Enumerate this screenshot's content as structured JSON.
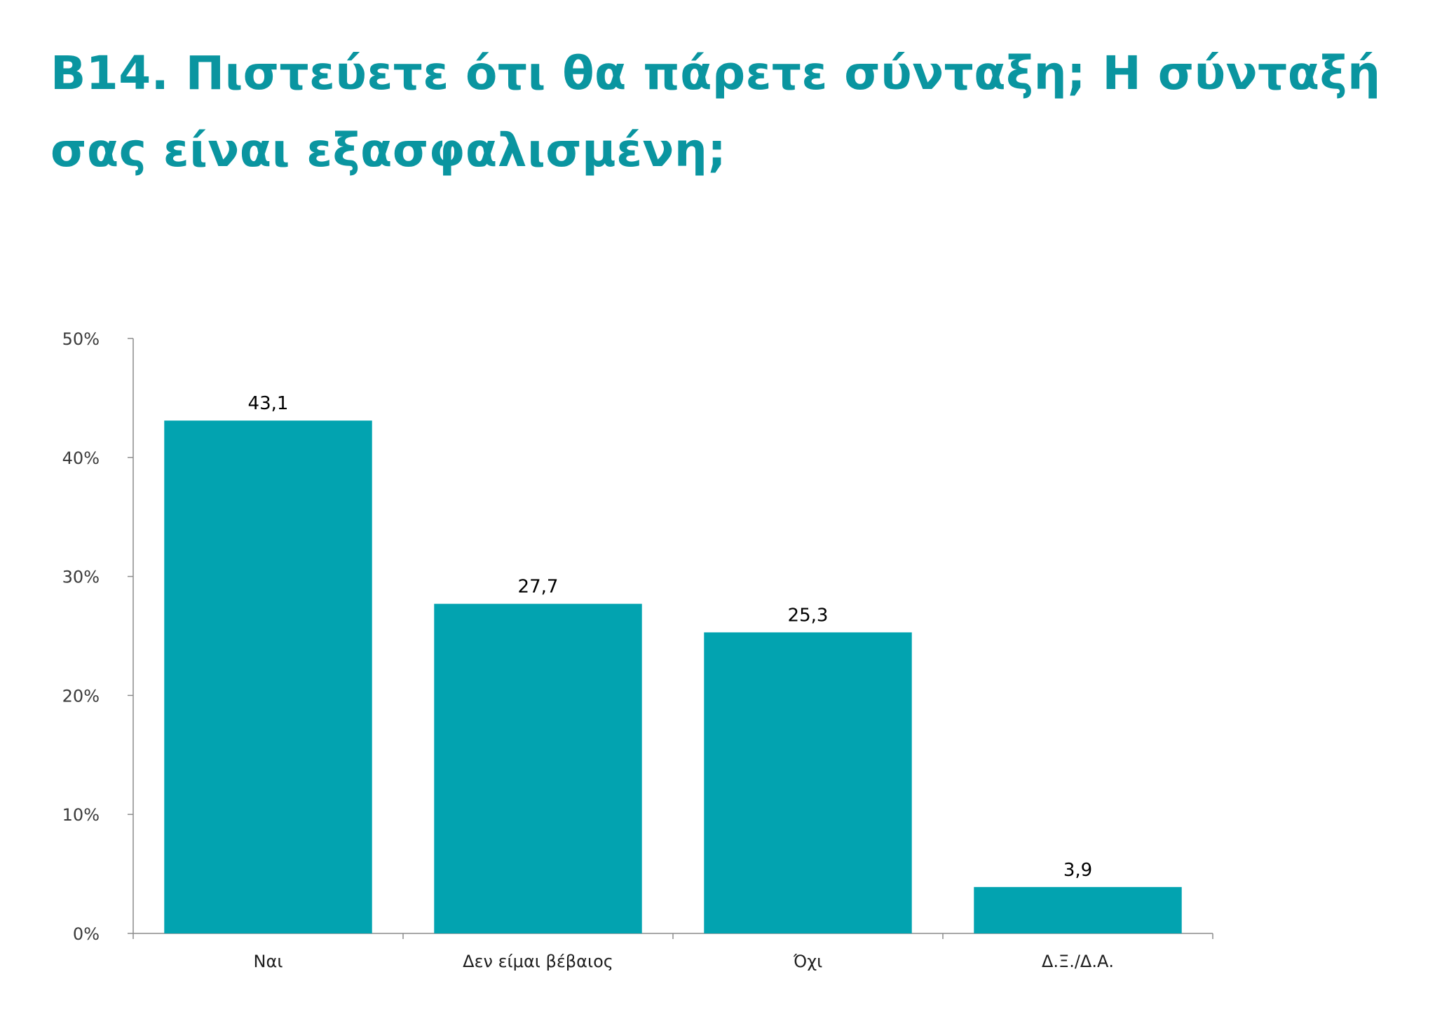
{
  "page": {
    "title": "Β14. Πιστεύετε ότι θα πάρετε σύνταξη; Η σύνταξή σας είναι εξασφαλισμένη;"
  },
  "colors": {
    "title": "#0a95a0",
    "bar": "#02a3b0",
    "axis": "#8c8c8c"
  },
  "chart_data": {
    "type": "bar",
    "title": "",
    "xlabel": "",
    "ylabel": "",
    "categories": [
      "Ναι",
      "Δεν είμαι βέβαιος",
      "Όχι",
      "Δ.Ξ./Δ.Α."
    ],
    "values": [
      43.1,
      27.7,
      25.3,
      3.9
    ],
    "data_labels": [
      "43,1",
      "27,7",
      "25,3",
      "3,9"
    ],
    "ylim": [
      0,
      50
    ],
    "yticks": [
      0,
      10,
      20,
      30,
      40,
      50
    ],
    "ytick_labels": [
      "0%",
      "10%",
      "20%",
      "30%",
      "40%",
      "50%"
    ],
    "grid": false,
    "legend": "none"
  }
}
